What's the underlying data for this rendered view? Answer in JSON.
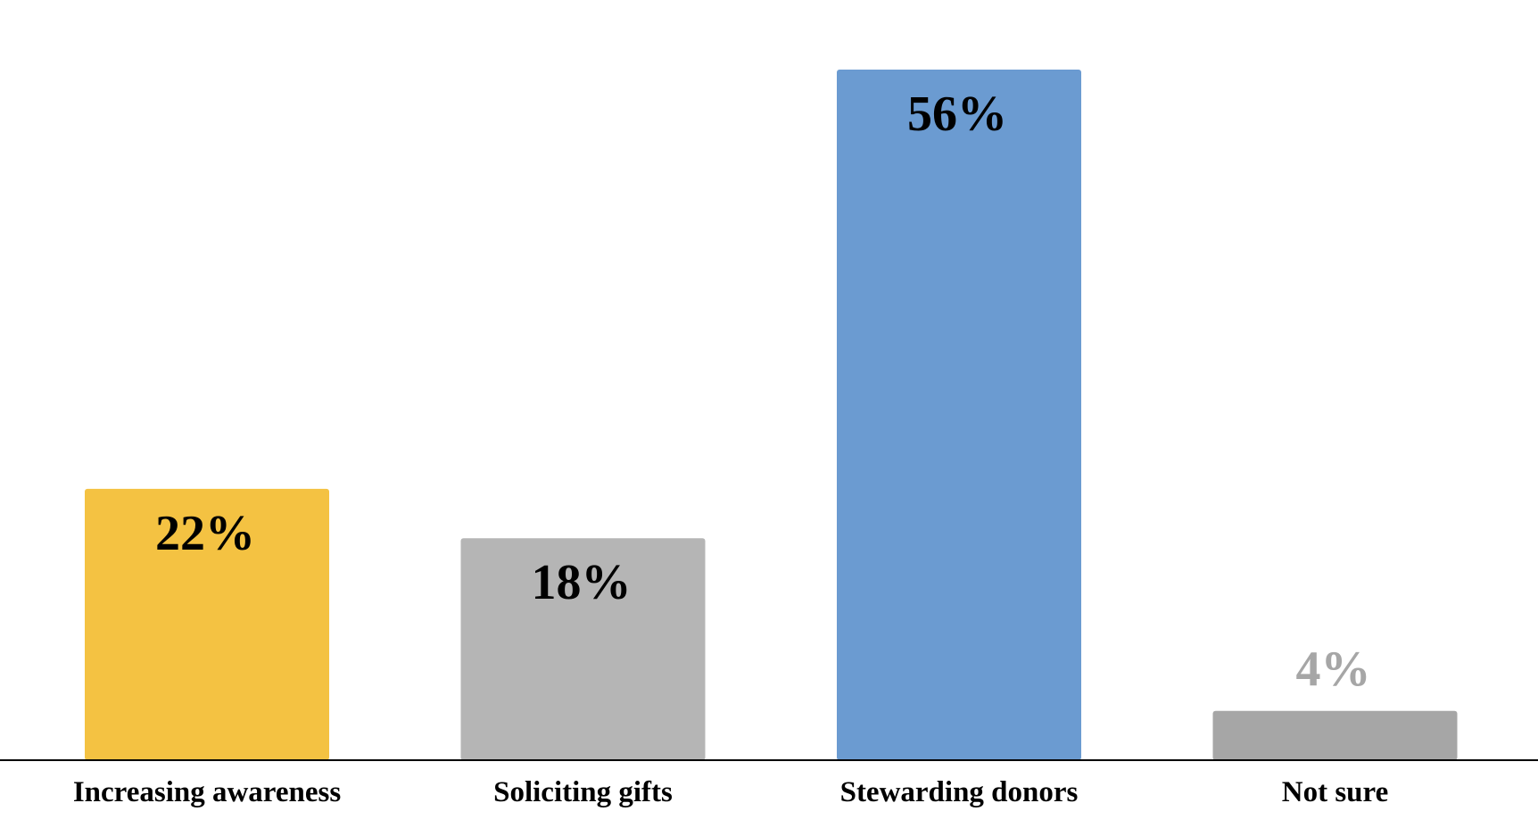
{
  "chart_data": {
    "type": "bar",
    "categories": [
      "Increasing awareness",
      "Soliciting gifts",
      "Stewarding donors",
      "Not sure"
    ],
    "values": [
      22,
      18,
      56,
      4
    ],
    "value_labels": [
      "22%",
      "18%",
      "56%",
      "4%"
    ],
    "unit": "%",
    "ylim": [
      0,
      60
    ],
    "grid": false,
    "legend": "none",
    "title": "",
    "xlabel": "",
    "ylabel": "",
    "bar_colors": [
      "#F4C242",
      "#B5B5B5",
      "#6B9BD1",
      "#A6A6A6"
    ],
    "value_label_colors": [
      "#000000",
      "#000000",
      "#000000",
      "#A6A6A6"
    ],
    "value_label_position": [
      "inside",
      "inside",
      "inside",
      "outside"
    ]
  }
}
